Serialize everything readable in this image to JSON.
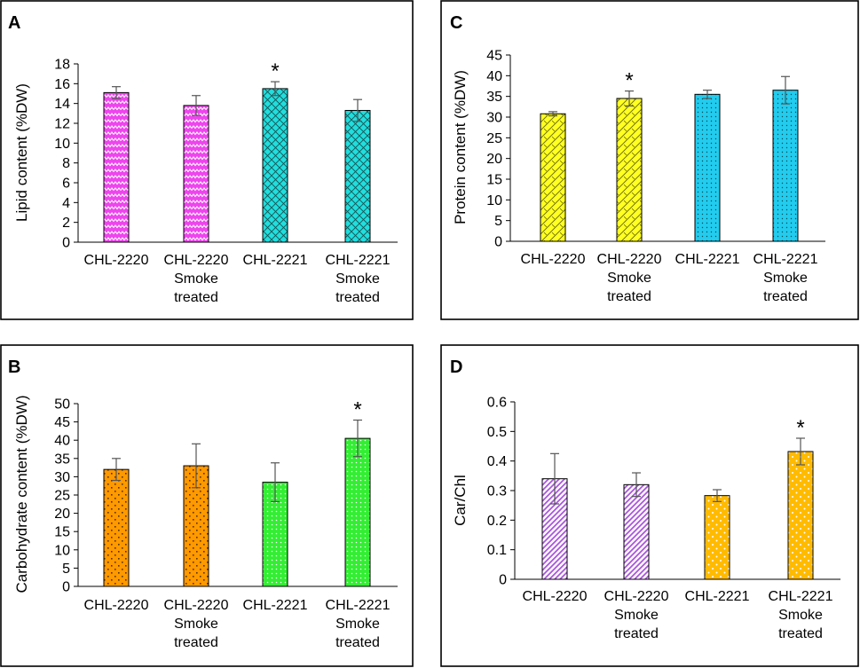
{
  "chart_data": [
    {
      "panel": "A",
      "type": "bar",
      "title": "",
      "xlabel": "",
      "ylabel": "Lipid content (%DW)",
      "ylim": [
        0,
        18
      ],
      "ytick_step": 2,
      "yticks": [
        "0",
        "2",
        "4",
        "6",
        "8",
        "10",
        "12",
        "14",
        "16",
        "18"
      ],
      "categories": [
        [
          "CHL-2220"
        ],
        [
          "CHL-2220",
          "Smoke",
          "treated"
        ],
        [
          "CHL-2221"
        ],
        [
          "CHL-2221",
          "Smoke",
          "treated"
        ]
      ],
      "values": [
        15.1,
        13.8,
        15.5,
        13.3
      ],
      "errors": [
        0.6,
        1.0,
        0.7,
        1.1
      ],
      "significant": [
        false,
        false,
        true,
        false
      ],
      "bar_colors": [
        "#ee44ee",
        "#ee44ee",
        "#22dddd",
        "#22dddd"
      ],
      "patterns": [
        "zigzag",
        "zigzag",
        "crosshatch",
        "crosshatch"
      ]
    },
    {
      "panel": "B",
      "type": "bar",
      "title": "",
      "xlabel": "",
      "ylabel": "Carbohydrate content (%DW)",
      "ylim": [
        0,
        50
      ],
      "ytick_step": 5,
      "yticks": [
        "0",
        "5",
        "10",
        "15",
        "20",
        "25",
        "30",
        "35",
        "40",
        "45",
        "50"
      ],
      "categories": [
        [
          "CHL-2220"
        ],
        [
          "CHL-2220",
          "Smoke",
          "treated"
        ],
        [
          "CHL-2221"
        ],
        [
          "CHL-2221",
          "Smoke",
          "treated"
        ]
      ],
      "values": [
        32,
        33,
        28.5,
        40.5
      ],
      "errors": [
        3,
        6,
        5.3,
        5
      ],
      "significant": [
        false,
        false,
        false,
        true
      ],
      "bar_colors": [
        "#ff9900",
        "#ff9900",
        "#33ee33",
        "#33ee33"
      ],
      "patterns": [
        "checkerdots",
        "checkerdots",
        "dots",
        "dots"
      ]
    },
    {
      "panel": "C",
      "type": "bar",
      "title": "",
      "xlabel": "",
      "ylabel": "Protein content (%DW)",
      "ylim": [
        0,
        45
      ],
      "ytick_step": 5,
      "yticks": [
        "0",
        "5",
        "10",
        "15",
        "20",
        "25",
        "30",
        "35",
        "40",
        "45"
      ],
      "categories": [
        [
          "CHL-2220"
        ],
        [
          "CHL-2220",
          "Smoke",
          "treated"
        ],
        [
          "CHL-2221"
        ],
        [
          "CHL-2221",
          "Smoke",
          "treated"
        ]
      ],
      "values": [
        30.8,
        34.5,
        35.5,
        36.5
      ],
      "errors": [
        0.5,
        1.8,
        1.0,
        3.3
      ],
      "significant": [
        false,
        true,
        false,
        false
      ],
      "bar_colors": [
        "#ffff22",
        "#ffff22",
        "#22ccee",
        "#22ccee"
      ],
      "patterns": [
        "weave",
        "weave",
        "dots",
        "dots"
      ]
    },
    {
      "panel": "D",
      "type": "bar",
      "title": "",
      "xlabel": "",
      "ylabel": "Car/Chl",
      "ylim": [
        0,
        0.6
      ],
      "ytick_step": 0.1,
      "yticks": [
        "0",
        "0.1",
        "0.2",
        "0.3",
        "0.4",
        "0.5",
        "0.6"
      ],
      "categories": [
        [
          "CHL-2220"
        ],
        [
          "CHL-2220",
          "Smoke",
          "treated"
        ],
        [
          "CHL-2221"
        ],
        [
          "CHL-2221",
          "Smoke",
          "treated"
        ]
      ],
      "values": [
        0.34,
        0.32,
        0.283,
        0.432
      ],
      "errors": [
        0.085,
        0.04,
        0.02,
        0.045
      ],
      "significant": [
        false,
        false,
        false,
        true
      ],
      "bar_colors": [
        "#bb66ee",
        "#bb66ee",
        "#ffbb00",
        "#ffbb00"
      ],
      "patterns": [
        "diagonal",
        "diagonal",
        "whitedots",
        "whitedots"
      ]
    }
  ]
}
